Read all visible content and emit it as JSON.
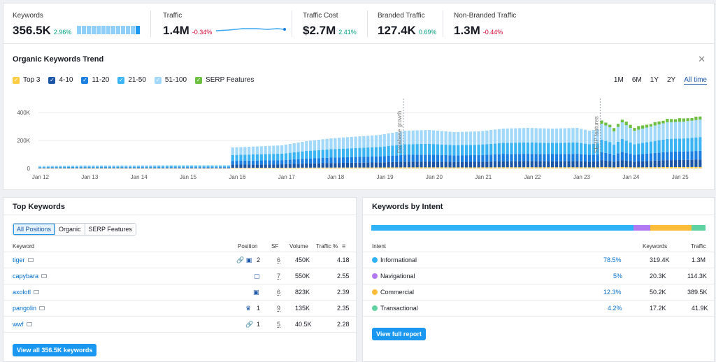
{
  "metrics": [
    {
      "label": "Keywords",
      "value": "356.5K",
      "change": "2.96%",
      "dir": "up"
    },
    {
      "label": "Traffic",
      "value": "1.4M",
      "change": "-0.34%",
      "dir": "down"
    },
    {
      "label": "Traffic Cost",
      "value": "$2.7M",
      "change": "2.41%",
      "dir": "up"
    },
    {
      "label": "Branded Traffic",
      "value": "127.4K",
      "change": "0.69%",
      "dir": "up"
    },
    {
      "label": "Non-Branded Traffic",
      "value": "1.3M",
      "change": "-0.44%",
      "dir": "down"
    }
  ],
  "trend": {
    "title": "Organic Keywords Trend",
    "legend": [
      {
        "label": "Top 3",
        "color": "#ffcc44"
      },
      {
        "label": "4-10",
        "color": "#1a55a6"
      },
      {
        "label": "11-20",
        "color": "#1a7fe0"
      },
      {
        "label": "21-50",
        "color": "#3ab4f2"
      },
      {
        "label": "51-100",
        "color": "#a2d9fb"
      },
      {
        "label": "SERP Features",
        "color": "#6cbf3f"
      }
    ],
    "ranges": [
      "1M",
      "6M",
      "1Y",
      "2Y",
      "All time"
    ],
    "active_range": "All time",
    "annotations": [
      "Database growth",
      "SERP features"
    ]
  },
  "chart_data": {
    "type": "bar",
    "stacked": true,
    "x_tick_labels": [
      "Jan 12",
      "Jan 13",
      "Jan 14",
      "Jan 15",
      "Jan 16",
      "Jan 17",
      "Jan 18",
      "Jan 19",
      "Jan 20",
      "Jan 21",
      "Jan 22",
      "Jan 23",
      "Jan 24",
      "Jan 25"
    ],
    "y_tick_labels": [
      "400K",
      "200K",
      "0"
    ],
    "ylim": [
      0,
      450000
    ],
    "series": [
      {
        "name": "Top 3",
        "color": "#ffcc44"
      },
      {
        "name": "4-10",
        "color": "#1a55a6"
      },
      {
        "name": "11-20",
        "color": "#1a7fe0"
      },
      {
        "name": "21-50",
        "color": "#3ab4f2"
      },
      {
        "name": "51-100",
        "color": "#a2d9fb"
      },
      {
        "name": "SERP Features",
        "color": "#6cbf3f"
      }
    ],
    "shares": [
      0.03,
      0.15,
      0.18,
      0.28,
      0.36
    ],
    "monthly_total": [
      [
        1,
        18000
      ],
      [
        12,
        22000
      ],
      [
        24,
        22000
      ],
      [
        36,
        24000
      ],
      [
        47,
        24000
      ],
      [
        48,
        150000
      ],
      [
        60,
        165000
      ],
      [
        62,
        175000
      ],
      [
        66,
        195000
      ],
      [
        72,
        215000
      ],
      [
        84,
        240000
      ],
      [
        90,
        270000
      ],
      [
        96,
        275000
      ],
      [
        102,
        260000
      ],
      [
        108,
        265000
      ],
      [
        114,
        285000
      ],
      [
        120,
        290000
      ],
      [
        126,
        285000
      ],
      [
        132,
        290000
      ],
      [
        135,
        270000
      ],
      [
        137,
        280000
      ],
      [
        138,
        320000
      ],
      [
        140,
        295000
      ],
      [
        141,
        265000
      ],
      [
        143,
        330000
      ],
      [
        146,
        270000
      ],
      [
        148,
        285000
      ],
      [
        150,
        300000
      ],
      [
        154,
        330000
      ],
      [
        158,
        335000
      ],
      [
        162,
        350000
      ]
    ],
    "serp_from_month": 138,
    "serp_value": 22000
  },
  "top_keywords": {
    "title": "Top Keywords",
    "tabs": [
      "All Positions",
      "Organic",
      "SERP Features"
    ],
    "active_tab": "All Positions",
    "columns": [
      "Keyword",
      "Position",
      "SF",
      "Volume",
      "Traffic %"
    ],
    "rows": [
      {
        "keyword": "tiger",
        "pos_icons": "🔗 ▣",
        "position": "2",
        "sf": "6",
        "volume": "450K",
        "traffic": "4.18"
      },
      {
        "keyword": "capybara",
        "pos_icons": "▢",
        "position": "",
        "sf": "7",
        "volume": "550K",
        "traffic": "2.55"
      },
      {
        "keyword": "axolotl",
        "pos_icons": "▣",
        "position": "",
        "sf": "6",
        "volume": "823K",
        "traffic": "2.39"
      },
      {
        "keyword": "pangolin",
        "pos_icons": "♛",
        "position": "1",
        "sf": "9",
        "volume": "135K",
        "traffic": "2.35"
      },
      {
        "keyword": "wwf",
        "pos_icons": "🔗",
        "position": "1",
        "sf": "5",
        "volume": "40.5K",
        "traffic": "2.28"
      }
    ],
    "view_all_label": "View all 356.5K keywords"
  },
  "intent": {
    "title": "Keywords by Intent",
    "columns": [
      "Intent",
      "Keywords",
      "Traffic"
    ],
    "rows": [
      {
        "label": "Informational",
        "pct": "78.5%",
        "share": 78.5,
        "keywords": "319.4K",
        "traffic": "1.3M",
        "color": "#2fb3f6"
      },
      {
        "label": "Navigational",
        "pct": "5%",
        "share": 5,
        "keywords": "20.3K",
        "traffic": "114.3K",
        "color": "#b27af2"
      },
      {
        "label": "Commercial",
        "pct": "12.3%",
        "share": 12.3,
        "keywords": "50.2K",
        "traffic": "389.5K",
        "color": "#fcbd3a"
      },
      {
        "label": "Transactional",
        "pct": "4.2%",
        "share": 4.2,
        "keywords": "17.2K",
        "traffic": "41.9K",
        "color": "#5fd3a2"
      }
    ],
    "report_label": "View full report"
  }
}
